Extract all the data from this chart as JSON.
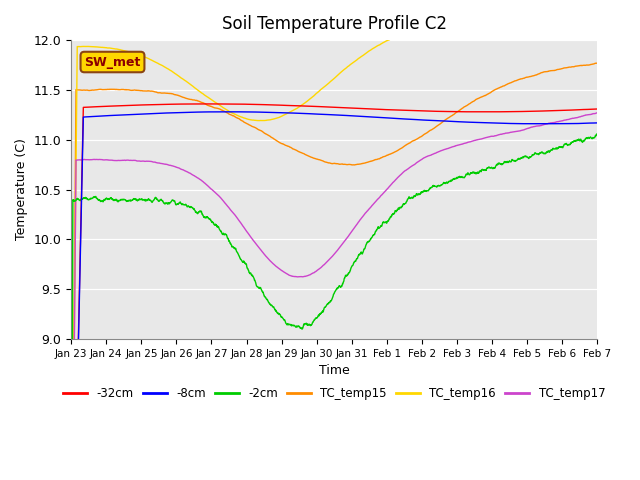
{
  "title": "Soil Temperature Profile C2",
  "xlabel": "Time",
  "ylabel": "Temperature (C)",
  "ylim": [
    9.0,
    12.0
  ],
  "yticks": [
    9.0,
    9.5,
    10.0,
    10.5,
    11.0,
    11.5,
    12.0
  ],
  "xtick_labels": [
    "Jan 23",
    "Jan 24",
    "Jan 25",
    "Jan 26",
    "Jan 27",
    "Jan 28",
    "Jan 29",
    "Jan 30",
    "Jan 31",
    "Feb 1",
    "Feb 2",
    "Feb 3",
    "Feb 4",
    "Feb 5",
    "Feb 6",
    "Feb 7"
  ],
  "annotation_text": "SW_met",
  "annotation_color": "#8B0000",
  "annotation_bg": "#FFD700",
  "annotation_edge": "#8B4513",
  "bg_color": "#E8E8E8",
  "colors": {
    "neg32cm": "#FF0000",
    "neg8cm": "#0000FF",
    "neg2cm": "#00CC00",
    "TC_temp15": "#FF8C00",
    "TC_temp16": "#FFD700",
    "TC_temp17": "#CC44CC"
  },
  "legend_labels": [
    "-32cm",
    "-8cm",
    "-2cm",
    "TC_temp15",
    "TC_temp16",
    "TC_temp17"
  ]
}
